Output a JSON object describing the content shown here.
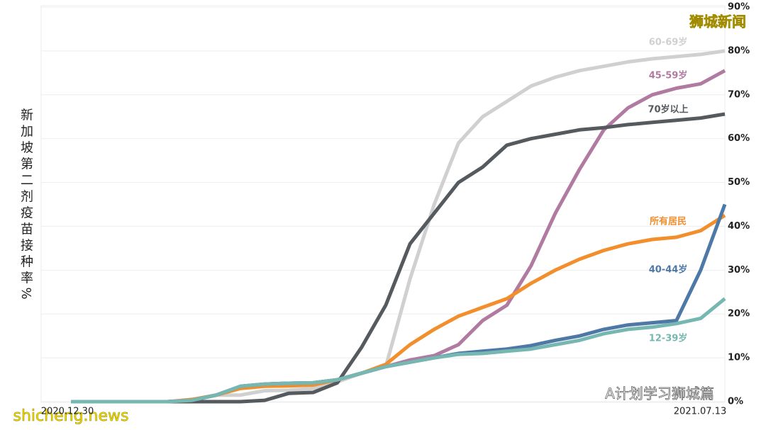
{
  "chart_data": {
    "type": "line",
    "ylabel": "新加坡第二剂疫苗接种率%",
    "watermarks": [
      "狮城新闻",
      "shicheng.news",
      "A计划学习狮城篇"
    ],
    "categories": [
      "2020.12.30",
      null,
      null,
      null,
      null,
      null,
      null,
      null,
      null,
      null,
      null,
      null,
      null,
      null,
      null,
      null,
      null,
      null,
      null,
      null,
      null,
      null,
      null,
      null,
      null,
      null,
      null,
      "2021.07.13"
    ],
    "ylim": [
      0,
      90
    ],
    "yticks": [
      {
        "value": 0,
        "label": "0%"
      },
      {
        "value": 10,
        "label": "10%"
      },
      {
        "value": 20,
        "label": "20%"
      },
      {
        "value": 30,
        "label": "30%"
      },
      {
        "value": 40,
        "label": "40%"
      },
      {
        "value": 50,
        "label": "50%"
      },
      {
        "value": 60,
        "label": "60%"
      },
      {
        "value": 70,
        "label": "70%"
      },
      {
        "value": 80,
        "label": "80%"
      },
      {
        "value": 90,
        "label": "90%"
      }
    ],
    "grid": true,
    "series": [
      {
        "name": "60-69岁",
        "color": "#d0d0d0",
        "values": [
          0,
          0,
          0,
          0,
          0,
          0.3,
          1.5,
          1.5,
          2.5,
          2.6,
          3,
          4.5,
          6.5,
          8,
          28,
          45,
          59,
          65,
          68.5,
          72,
          74,
          75.5,
          76.5,
          77.5,
          78.2,
          78.7,
          79.2,
          80
        ]
      },
      {
        "name": "45-59岁",
        "color": "#b07aa1",
        "values": [
          0,
          0,
          0,
          0,
          0,
          0.3,
          1.5,
          3.5,
          4,
          4.2,
          4.3,
          5,
          6.5,
          8,
          9.5,
          10.5,
          13,
          18.5,
          22,
          31,
          43,
          53,
          62,
          67,
          70,
          71.5,
          72.5,
          75.5
        ]
      },
      {
        "name": "70岁以上",
        "color": "#555a5f",
        "values": [
          0,
          0,
          0,
          0,
          0,
          0,
          0,
          0,
          0.3,
          1.9,
          2.1,
          4.3,
          12.4,
          22,
          36,
          43,
          50,
          53.5,
          58.5,
          60,
          61,
          62,
          62.5,
          63.2,
          63.7,
          64.2,
          64.7,
          65.6
        ]
      },
      {
        "name": "所有居民",
        "color": "#f28e2b",
        "values": [
          0,
          0,
          0,
          0,
          0,
          0.5,
          1.5,
          3,
          3.5,
          3.6,
          3.8,
          5,
          6.5,
          8.5,
          13,
          16.5,
          19.5,
          21.5,
          23.5,
          27,
          30,
          32.5,
          34.5,
          36,
          37,
          37.5,
          39,
          42.5
        ]
      },
      {
        "name": "40-44岁",
        "color": "#4e79a7",
        "values": [
          0,
          0,
          0,
          0,
          0,
          0.3,
          1.5,
          3.5,
          4,
          4.2,
          4.3,
          5,
          6.5,
          8,
          9,
          10,
          11,
          11.5,
          12,
          12.8,
          14,
          15,
          16.5,
          17.5,
          18,
          18.5,
          30,
          45
        ]
      },
      {
        "name": "12-39岁",
        "color": "#76b7b2",
        "values": [
          0,
          0,
          0,
          0,
          0,
          0.3,
          1.5,
          3.5,
          4,
          4.2,
          4.3,
          5,
          6.5,
          8,
          9,
          10,
          10.8,
          11,
          11.5,
          12,
          13,
          14,
          15.5,
          16.5,
          17,
          17.8,
          19,
          23.5
        ]
      }
    ]
  }
}
